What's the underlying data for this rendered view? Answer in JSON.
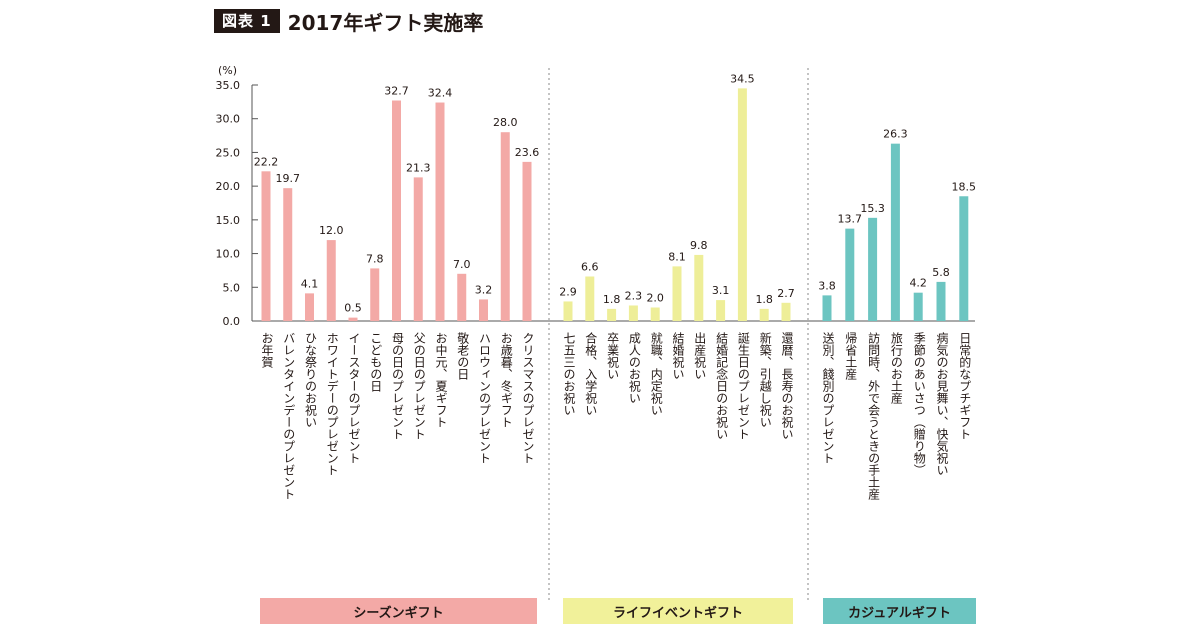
{
  "figure": {
    "tag": "図表 1",
    "title": "2017年ギフト実施率"
  },
  "chart_data": {
    "type": "bar",
    "ylabel": "(%)",
    "ylim": [
      0,
      35
    ],
    "yticks": [
      "0.0",
      "5.0",
      "10.0",
      "15.0",
      "20.0",
      "25.0",
      "30.0",
      "35.0"
    ],
    "grid": false,
    "groups": [
      {
        "name": "シーズンギフト",
        "color": "#f3a9a6",
        "box_color": "#f3a9a6",
        "categories": [
          "お年賀",
          "バレンタインデーのプレゼント",
          "ひな祭りのお祝い",
          "ホワイトデーのプレゼント",
          "イースターのプレゼント",
          "こどもの日",
          "母の日のプレゼント",
          "父の日のプレゼント",
          "お中元、夏ギフト",
          "敬老の日",
          "ハロウィンのプレゼント",
          "お歳暮、冬ギフト",
          "クリスマスのプレゼント"
        ],
        "values": [
          22.2,
          19.7,
          4.1,
          12.0,
          0.5,
          7.8,
          32.7,
          21.3,
          32.4,
          7.0,
          3.2,
          28.0,
          23.6
        ],
        "labels": [
          "22.2",
          "19.7",
          "4.1",
          "12.0",
          "0.5",
          "7.8",
          "32.7",
          "21.3",
          "32.4",
          "7.0",
          "3.2",
          "28.0",
          "23.6"
        ]
      },
      {
        "name": "ライフイベントギフト",
        "color": "#eeee98",
        "box_color": "#f1f19a",
        "categories": [
          "七五三のお祝い",
          "合格、入学祝い",
          "卒業祝い",
          "成人のお祝い",
          "就職、内定祝い",
          "結婚祝い",
          "出産祝い",
          "結婚記念日のお祝い",
          "誕生日のプレゼント",
          "新築、引越し祝い",
          "還暦、長寿のお祝い"
        ],
        "values": [
          2.9,
          6.6,
          1.8,
          2.3,
          2.0,
          8.1,
          9.8,
          3.1,
          34.5,
          1.8,
          2.7
        ],
        "labels": [
          "2.9",
          "6.6",
          "1.8",
          "2.3",
          "2.0",
          "8.1",
          "9.8",
          "3.1",
          "34.5",
          "1.8",
          "2.7"
        ]
      },
      {
        "name": "カジュアルギフト",
        "color": "#6cc5c1",
        "box_color": "#6cc5c1",
        "categories": [
          "送別、餞別のプレゼント",
          "帰省土産",
          "訪問時、外で会うときの手土産",
          "旅行のお土産",
          "季節のあいさつ（贈り物）",
          "病気のお見舞い、快気祝い",
          "日常的なプチギフト"
        ],
        "values": [
          3.8,
          13.7,
          15.3,
          26.3,
          4.2,
          5.8,
          18.5
        ],
        "labels": [
          "3.8",
          "13.7",
          "15.3",
          "26.3",
          "4.2",
          "5.8",
          "18.5"
        ]
      }
    ]
  }
}
